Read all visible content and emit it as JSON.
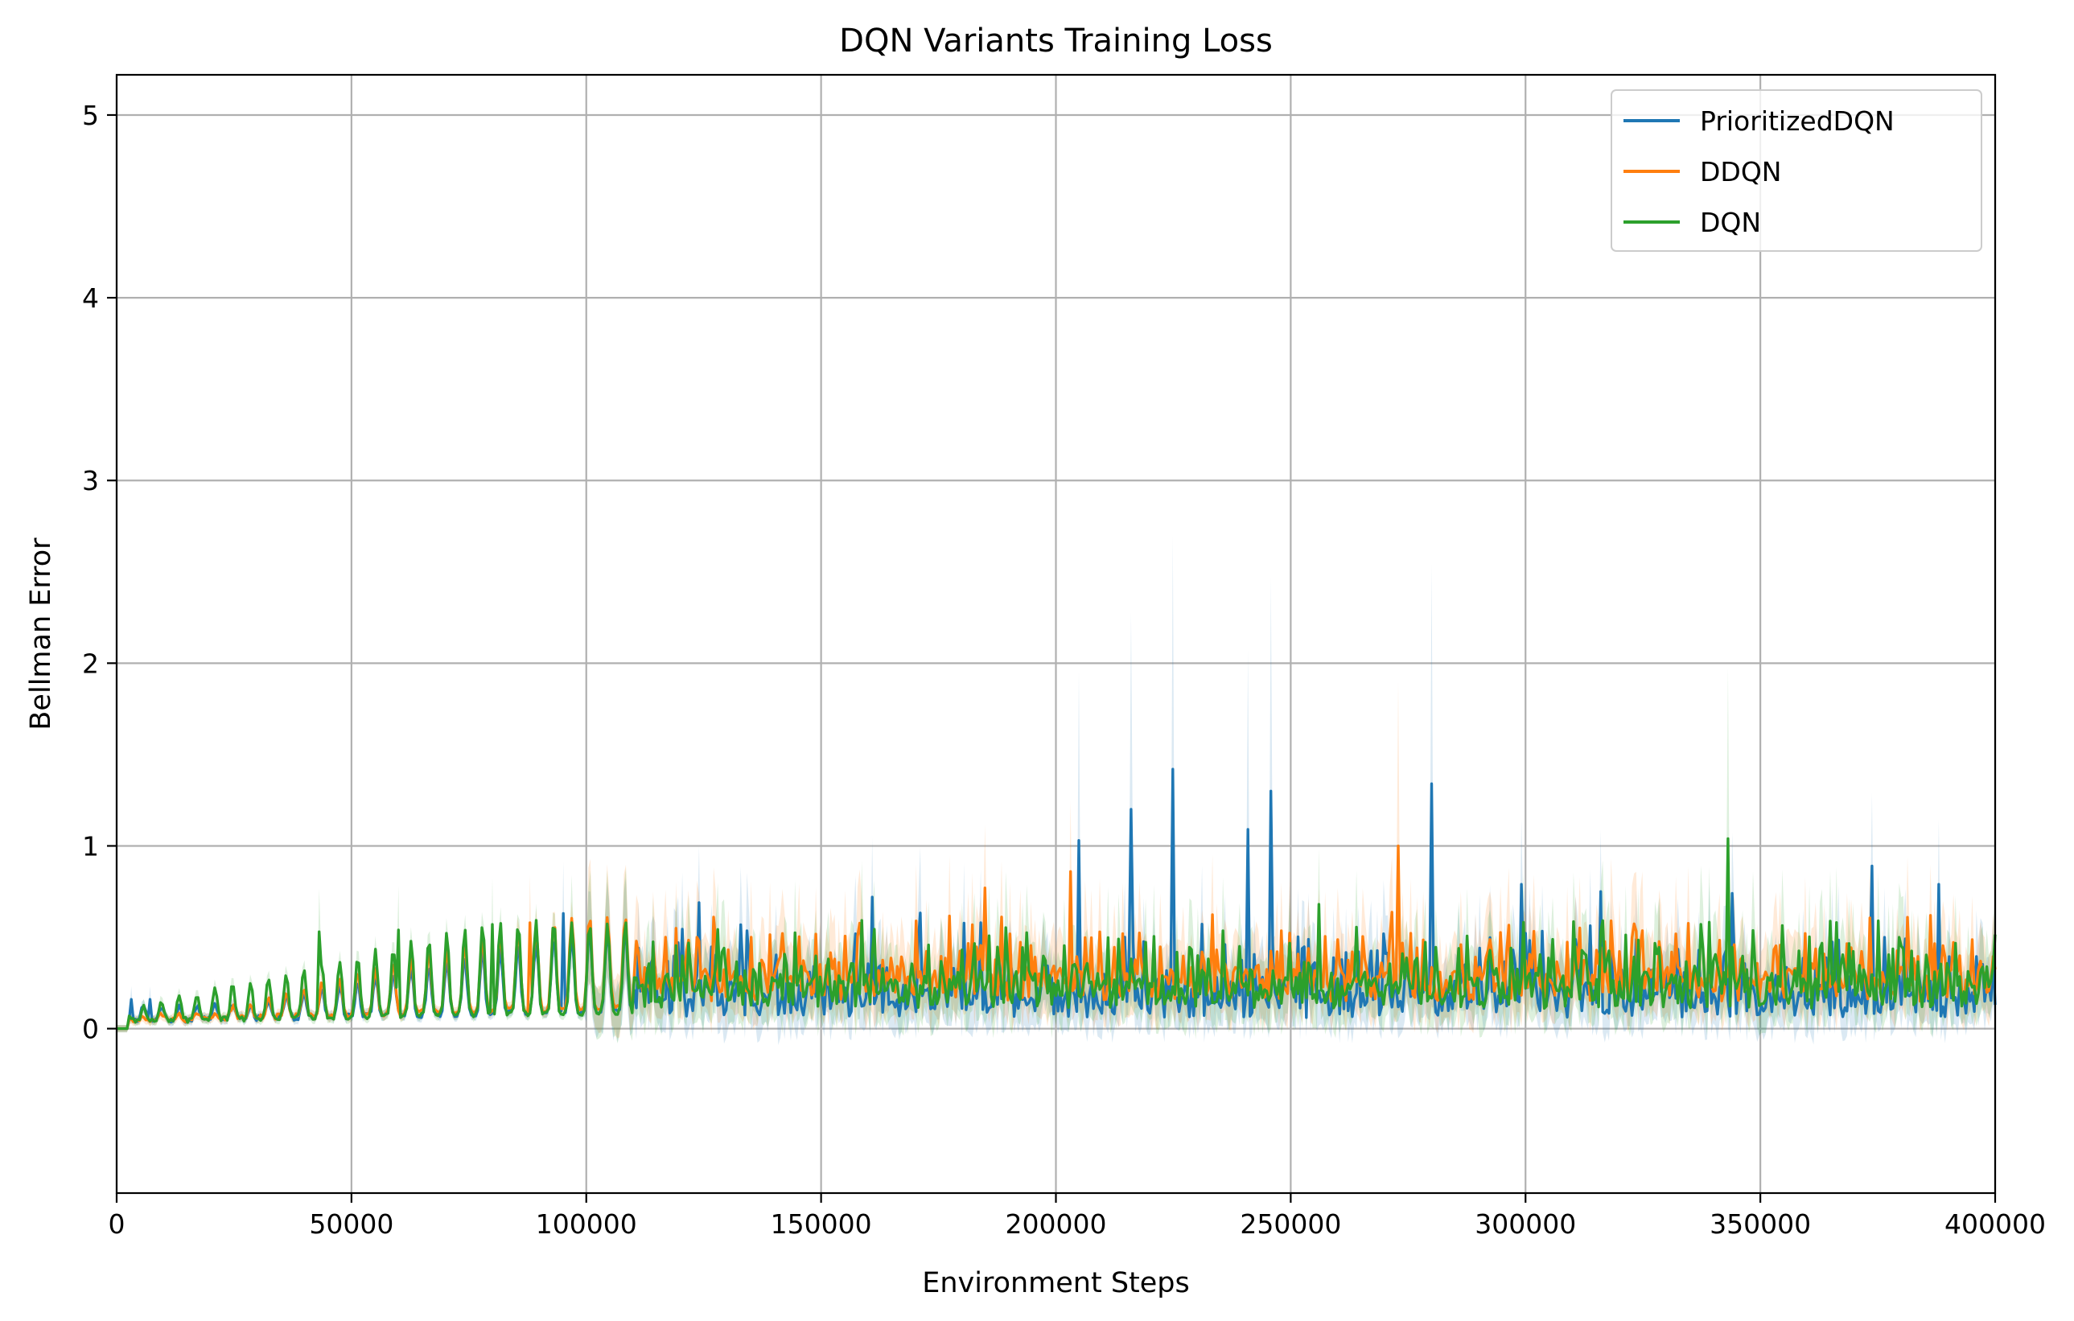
{
  "chart_data": {
    "type": "line",
    "title": "DQN Variants Training Loss",
    "xlabel": "Environment Steps",
    "ylabel": "Bellman Error",
    "xlim": [
      0,
      400000
    ],
    "ylim": [
      -0.9,
      5.22
    ],
    "xticks": [
      0,
      50000,
      100000,
      150000,
      200000,
      250000,
      300000,
      350000,
      400000
    ],
    "xtick_labels": [
      "0",
      "50000",
      "100000",
      "150000",
      "200000",
      "250000",
      "300000",
      "350000",
      "400000"
    ],
    "yticks": [
      0,
      1,
      2,
      3,
      4,
      5
    ],
    "ytick_labels": [
      "0",
      "1",
      "2",
      "3",
      "4",
      "5"
    ],
    "grid": true,
    "legend_position": "top-right",
    "shaded_band": "mean ± std (light fill around each line)",
    "series": [
      {
        "name": "PrioritizedDQN",
        "color": "#1f77b4",
        "peaks": [
          [
            3000,
            0.16
          ],
          [
            7000,
            0.16
          ],
          [
            95000,
            0.63
          ],
          [
            124000,
            0.69
          ],
          [
            161000,
            0.72
          ],
          [
            205000,
            1.03
          ],
          [
            216000,
            1.2
          ],
          [
            225000,
            1.42
          ],
          [
            241000,
            1.09
          ],
          [
            246000,
            1.3
          ],
          [
            280000,
            1.34
          ],
          [
            299000,
            0.79
          ],
          [
            316000,
            0.75
          ],
          [
            344000,
            0.74
          ],
          [
            374000,
            0.89
          ],
          [
            388000,
            0.79
          ]
        ]
      },
      {
        "name": "DDQN",
        "color": "#ff7f0e",
        "peaks": [
          [
            88000,
            0.58
          ],
          [
            127000,
            0.61
          ],
          [
            185000,
            0.77
          ],
          [
            203000,
            0.86
          ],
          [
            273000,
            1.0
          ],
          [
            386000,
            0.62
          ]
        ]
      },
      {
        "name": "DQN",
        "color": "#2ca02c",
        "peaks": [
          [
            43000,
            0.53
          ],
          [
            60000,
            0.54
          ],
          [
            80000,
            0.57
          ],
          [
            97000,
            0.58
          ],
          [
            256000,
            0.68
          ],
          [
            343000,
            1.04
          ],
          [
            375000,
            0.59
          ]
        ]
      }
    ]
  }
}
